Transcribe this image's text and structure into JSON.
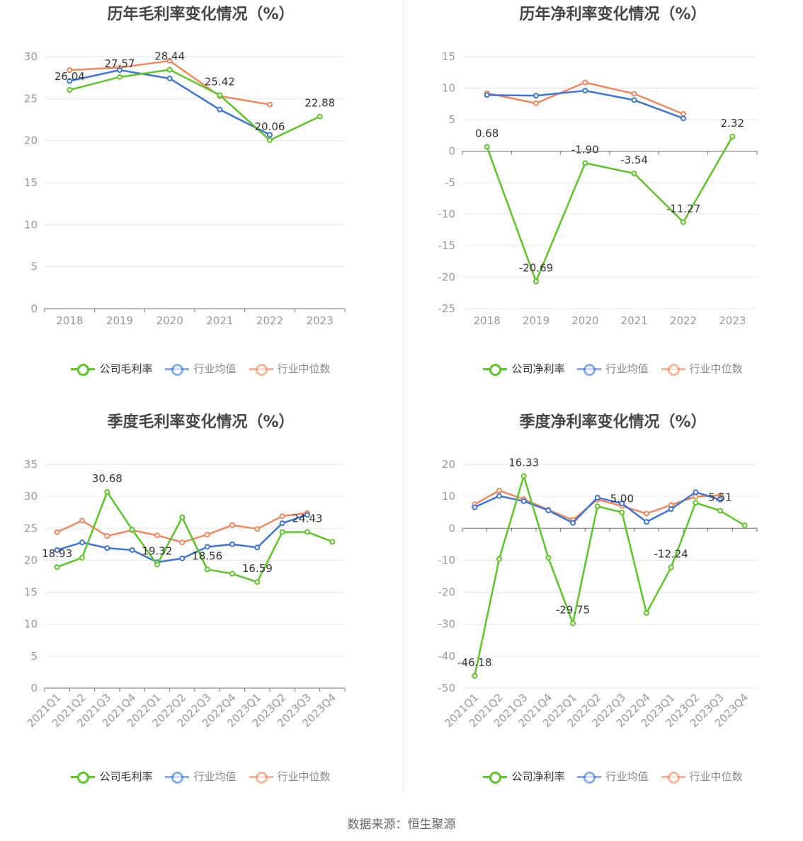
{
  "source": "数据来源：恒生聚源",
  "colors": {
    "company": "#5ac725",
    "avg": "#3a74dc",
    "median": "#f3865a"
  },
  "chart_data": [
    {
      "id": "annual-gross",
      "type": "line",
      "title": "历年毛利率变化情况（%）",
      "categories": [
        "2018",
        "2019",
        "2020",
        "2021",
        "2022",
        "2023"
      ],
      "ylim": [
        0,
        30
      ],
      "yticks": [
        0,
        5,
        10,
        15,
        20,
        25,
        30
      ],
      "grid": true,
      "legend_position": "bottom",
      "rotate_x_labels": false,
      "series": [
        {
          "name": "公司毛利率",
          "key": "company",
          "values": [
            26.04,
            27.57,
            28.44,
            25.42,
            20.06,
            22.88
          ],
          "labels": true
        },
        {
          "name": "行业均值",
          "key": "avg",
          "values": [
            27.1,
            28.4,
            27.4,
            23.7,
            20.7,
            null
          ],
          "labels": false
        },
        {
          "name": "行业中位数",
          "key": "median",
          "values": [
            28.4,
            28.7,
            29.5,
            25.3,
            24.3,
            null
          ],
          "labels": false
        }
      ]
    },
    {
      "id": "annual-net",
      "type": "line",
      "title": "历年净利率变化情况（%）",
      "categories": [
        "2018",
        "2019",
        "2020",
        "2021",
        "2022",
        "2023"
      ],
      "ylim": [
        -25,
        15
      ],
      "yticks": [
        -25,
        -20,
        -15,
        -10,
        -5,
        0,
        5,
        10,
        15
      ],
      "grid": true,
      "legend_position": "bottom",
      "rotate_x_labels": false,
      "series": [
        {
          "name": "公司净利率",
          "key": "company",
          "values": [
            0.68,
            -20.69,
            -1.9,
            -3.54,
            -11.27,
            2.32
          ],
          "labels": true,
          "label_texts": [
            "0.68",
            "-20.69",
            "-1.90",
            "-3.54",
            "-11.27",
            "2.32"
          ]
        },
        {
          "name": "行业均值",
          "key": "avg",
          "values": [
            8.9,
            8.8,
            9.6,
            8.1,
            5.2,
            null
          ],
          "labels": false
        },
        {
          "name": "行业中位数",
          "key": "median",
          "values": [
            9.2,
            7.6,
            10.9,
            9.1,
            5.9,
            null
          ],
          "labels": false
        }
      ]
    },
    {
      "id": "quarter-gross",
      "type": "line",
      "title": "季度毛利率变化情况（%）",
      "categories": [
        "2021Q1",
        "2021Q2",
        "2021Q3",
        "2021Q4",
        "2022Q1",
        "2022Q2",
        "2022Q3",
        "2022Q4",
        "2023Q1",
        "2023Q2",
        "2023Q3",
        "2023Q4"
      ],
      "ylim": [
        0,
        35
      ],
      "yticks": [
        0,
        5,
        10,
        15,
        20,
        25,
        30,
        35
      ],
      "grid": true,
      "legend_position": "bottom",
      "rotate_x_labels": true,
      "series": [
        {
          "name": "公司毛利率",
          "key": "company",
          "values": [
            18.93,
            20.4,
            30.68,
            24.8,
            19.32,
            26.7,
            18.56,
            17.9,
            16.59,
            24.4,
            24.43,
            22.9
          ],
          "labels": true,
          "label_idx": [
            0,
            2,
            4,
            6,
            8,
            10
          ]
        },
        {
          "name": "行业均值",
          "key": "avg",
          "values": [
            21.6,
            22.8,
            21.9,
            21.6,
            19.7,
            20.3,
            22.1,
            22.5,
            22.0,
            25.8,
            27.1,
            null
          ],
          "labels": false
        },
        {
          "name": "行业中位数",
          "key": "median",
          "values": [
            24.4,
            26.2,
            23.8,
            24.7,
            23.9,
            22.8,
            24.0,
            25.5,
            24.9,
            26.9,
            27.4,
            null
          ],
          "labels": false
        }
      ]
    },
    {
      "id": "quarter-net",
      "type": "line",
      "title": "季度净利率变化情况（%）",
      "categories": [
        "2021Q1",
        "2021Q2",
        "2021Q3",
        "2021Q4",
        "2022Q1",
        "2022Q2",
        "2022Q3",
        "2022Q4",
        "2023Q1",
        "2023Q2",
        "2023Q3",
        "2023Q4"
      ],
      "ylim": [
        -50,
        20
      ],
      "yticks": [
        -50,
        -40,
        -30,
        -20,
        -10,
        0,
        10,
        20
      ],
      "grid": true,
      "legend_position": "bottom",
      "rotate_x_labels": true,
      "series": [
        {
          "name": "公司净利率",
          "key": "company",
          "values": [
            -46.18,
            -9.6,
            16.33,
            -9.2,
            -29.75,
            6.9,
            5.0,
            -26.5,
            -12.24,
            8.0,
            5.51,
            0.9
          ],
          "labels": true,
          "label_idx": [
            0,
            2,
            4,
            6,
            8,
            10
          ],
          "label_texts": [
            "-46.18",
            "",
            "16.33",
            "",
            "-29.75",
            "",
            "5.00",
            "",
            "-12.24",
            "",
            "5.51",
            ""
          ]
        },
        {
          "name": "行业均值",
          "key": "avg",
          "values": [
            6.6,
            10.1,
            8.5,
            5.6,
            1.7,
            9.6,
            7.8,
            2.0,
            6.0,
            11.3,
            9.0,
            null
          ],
          "labels": false
        },
        {
          "name": "行业中位数",
          "key": "median",
          "values": [
            7.5,
            11.8,
            9.1,
            5.8,
            2.6,
            9.0,
            7.0,
            4.6,
            7.3,
            9.9,
            10.3,
            null
          ],
          "labels": false
        }
      ]
    }
  ]
}
